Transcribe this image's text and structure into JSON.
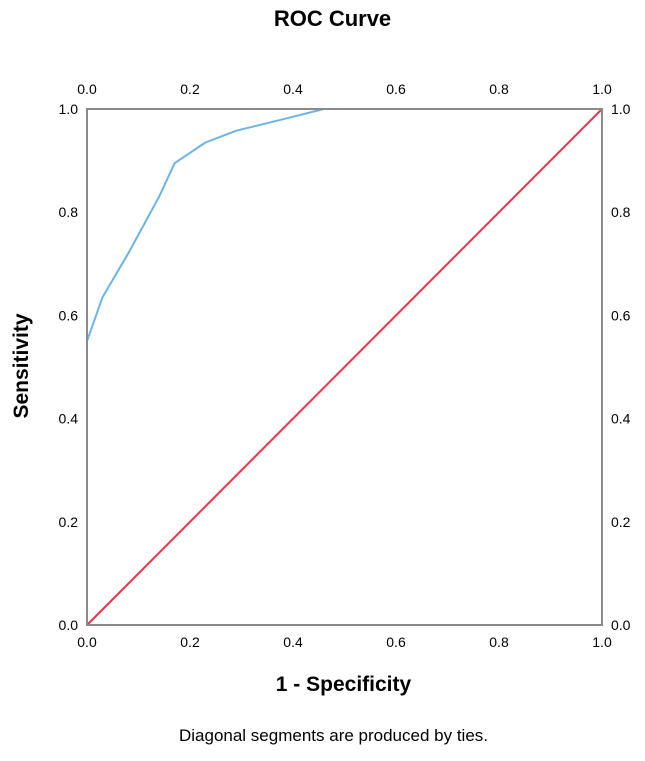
{
  "chart_data": {
    "type": "line",
    "title": "ROC Curve",
    "xlabel": "1 - Specificity",
    "ylabel": "Sensitivity",
    "footnote": "Diagonal segments are produced by ties.",
    "xlim": [
      0,
      1
    ],
    "ylim": [
      0,
      1
    ],
    "x_ticks": [
      "0.0",
      "0.2",
      "0.4",
      "0.6",
      "0.8",
      "1.0"
    ],
    "y_ticks": [
      "0.0",
      "0.2",
      "0.4",
      "0.6",
      "0.8",
      "1.0"
    ],
    "grid": false,
    "legend": "none",
    "series": [
      {
        "color": "#6cb4e8",
        "x": [
          0.0,
          0.0,
          0.0,
          0.03,
          0.08,
          0.14,
          0.17,
          0.23,
          0.29,
          0.38,
          0.46,
          1.0
        ],
        "y": [
          0.0,
          0.5,
          0.55,
          0.635,
          0.72,
          0.83,
          0.895,
          0.935,
          0.958,
          0.98,
          1.0,
          1.0
        ]
      },
      {
        "color": "#f0324b",
        "x": [
          0.0,
          1.0
        ],
        "y": [
          0.0,
          1.0
        ]
      }
    ]
  }
}
